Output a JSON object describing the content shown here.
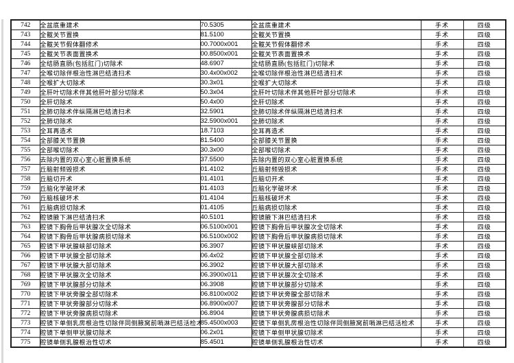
{
  "colors": {
    "table_border": "#1f1f1f",
    "text": "#000000",
    "page_background": "#ffffff",
    "page_edge_line": "#d9d9d9"
  },
  "table": {
    "columns": [
      "row_no",
      "procedure_name",
      "procedure_code",
      "procedure_name_repeat",
      "category",
      "level"
    ],
    "rows": [
      {
        "no": "742",
        "name": "全盆底重建术",
        "code": "70.5305",
        "name2": "全盆底重建术",
        "category": "手术",
        "level": "四级"
      },
      {
        "no": "743",
        "name": "全髋关节置换",
        "code": "81.5100",
        "name2": "全髋关节置换",
        "category": "手术",
        "level": "四级"
      },
      {
        "no": "744",
        "name": "全髋关节假体翻修术",
        "code": "00.7000x001",
        "name2": "全髋关节假体翻修术",
        "category": "手术",
        "level": "四级"
      },
      {
        "no": "745",
        "name": "全髋关节表面置换术",
        "code": "00.8500x001",
        "name2": "全髋关节表面置换术",
        "category": "手术",
        "level": "四级"
      },
      {
        "no": "746",
        "name": "全结肠直肠(包括肛门)切除术",
        "code": "48.6907",
        "name2": "全结肠直肠(包括肛门)切除术",
        "category": "手术",
        "level": "四级"
      },
      {
        "no": "747",
        "name": "全喉切除伴根治性淋巴结清扫术",
        "code": "30.4x00x002",
        "name2": "全喉切除伴根治性淋巴结清扫术",
        "category": "手术",
        "level": "四级"
      },
      {
        "no": "748",
        "name": "全喉扩大切除术",
        "code": "30.3x01",
        "name2": "全喉扩大切除术",
        "category": "手术",
        "level": "四级"
      },
      {
        "no": "749",
        "name": "全肝叶切除术伴其他肝叶部分切除术",
        "code": "50.3x04",
        "name2": "全肝叶切除术伴其他肝叶部分切除术",
        "category": "手术",
        "level": "四级"
      },
      {
        "no": "750",
        "name": "全肝切除术",
        "code": "50.4x00",
        "name2": "全肝切除术",
        "category": "手术",
        "level": "四级"
      },
      {
        "no": "751",
        "name": "全肺切除术伴纵隔淋巴结清扫术",
        "code": "32.5901",
        "name2": "全肺切除术伴纵隔淋巴结清扫术",
        "category": "手术",
        "level": "四级"
      },
      {
        "no": "752",
        "name": "全肺切除术",
        "code": "32.5900x001",
        "name2": "全肺切除术",
        "category": "手术",
        "level": "四级"
      },
      {
        "no": "753",
        "name": "全耳再造术",
        "code": "18.7103",
        "name2": "全耳再造术",
        "category": "手术",
        "level": "四级"
      },
      {
        "no": "754",
        "name": "全部膝关节置换",
        "code": "81.5400",
        "name2": "全部膝关节置换",
        "category": "手术",
        "level": "四级"
      },
      {
        "no": "755",
        "name": "全部喉切除术",
        "code": "30.3x00",
        "name2": "全部喉切除术",
        "category": "手术",
        "level": "四级"
      },
      {
        "no": "756",
        "name": "去除内置的双心室心脏置换系统",
        "code": "37.5500",
        "name2": "去除内置的双心室心脏置换系统",
        "category": "手术",
        "level": "四级"
      },
      {
        "no": "757",
        "name": "丘脑射频毁损术",
        "code": "01.4102",
        "name2": "丘脑射频毁损术",
        "category": "手术",
        "level": "四级"
      },
      {
        "no": "758",
        "name": "丘脑切开术",
        "code": "01.4101",
        "name2": "丘脑切开术",
        "category": "手术",
        "level": "四级"
      },
      {
        "no": "759",
        "name": "丘脑化学破坏术",
        "code": "01.4103",
        "name2": "丘脑化学破坏术",
        "category": "手术",
        "level": "四级"
      },
      {
        "no": "760",
        "name": "丘脑核破坏术",
        "code": "01.4104",
        "name2": "丘脑核破坏术",
        "category": "手术",
        "level": "四级"
      },
      {
        "no": "761",
        "name": "丘脑病损切除术",
        "code": "01.4105",
        "name2": "丘脑病损切除术",
        "category": "手术",
        "level": "四级"
      },
      {
        "no": "762",
        "name": "腔镜腋下淋巴结清扫术",
        "code": "40.5101",
        "name2": "腔镜腋下淋巴结清扫术",
        "category": "手术",
        "level": "四级"
      },
      {
        "no": "763",
        "name": "腔镜下胸骨后甲状腺次全切除术",
        "code": "06.5100x001",
        "name2": "腔镜下胸骨后甲状腺次全切除术",
        "category": "手术",
        "level": "四级"
      },
      {
        "no": "764",
        "name": "腔镜下胸骨后甲状腺病损切除术",
        "code": "06.5100x002",
        "name2": "腔镜下胸骨后甲状腺病损切除术",
        "category": "手术",
        "level": "四级"
      },
      {
        "no": "765",
        "name": "腔镜下甲状腺峡部切除术",
        "code": "06.3907",
        "name2": "腔镜下甲状腺峡部切除术",
        "category": "手术",
        "level": "四级"
      },
      {
        "no": "766",
        "name": "腔镜下甲状腺全部切除术",
        "code": "06.4x02",
        "name2": "腔镜下甲状腺全部切除术",
        "category": "手术",
        "level": "四级"
      },
      {
        "no": "767",
        "name": "腔镜下甲状腺大部切除术",
        "code": "06.3902",
        "name2": "腔镜下甲状腺大部切除术",
        "category": "手术",
        "level": "四级"
      },
      {
        "no": "768",
        "name": "腔镜下甲状腺次全切除术",
        "code": "06.3900x011",
        "name2": "腔镜下甲状腺次全切除术",
        "category": "手术",
        "level": "四级"
      },
      {
        "no": "769",
        "name": "腔镜下甲状腺部分切除术",
        "code": "06.3908",
        "name2": "腔镜下甲状腺部分切除术",
        "category": "手术",
        "level": "四级"
      },
      {
        "no": "770",
        "name": "腔镜下甲状旁腺全部切除术",
        "code": "06.8100x002",
        "name2": "腔镜下甲状旁腺全部切除术",
        "category": "手术",
        "level": "四级"
      },
      {
        "no": "771",
        "name": "腔镜下甲状旁腺部分切除术",
        "code": "06.8900x007",
        "name2": "腔镜下甲状旁腺部分切除术",
        "category": "手术",
        "level": "四级"
      },
      {
        "no": "772",
        "name": "腔镜下甲状旁腺病损切除术",
        "code": "06.8904",
        "name2": "腔镜下甲状旁腺病损切除术",
        "category": "手术",
        "level": "四级"
      },
      {
        "no": "773",
        "name": "腔镜下单侧乳房根治性切除伴同侧腋窝前哨淋巴结活检术",
        "code": "85.4500x003",
        "name2": "腔镜下单侧乳房根治性切除伴同侧腋窝前哨淋巴结活检术",
        "category": "手术",
        "level": "四级"
      },
      {
        "no": "774",
        "name": "腔镜下单侧甲状腺切除术",
        "code": "06.2x01",
        "name2": "腔镜下单侧甲状腺切除术",
        "category": "手术",
        "level": "四级"
      },
      {
        "no": "775",
        "name": "腔镜单侧乳腺根治性切术",
        "code": "85.4501",
        "name2": "腔镜单侧乳腺根治性切术",
        "category": "手术",
        "level": "四级"
      }
    ]
  }
}
